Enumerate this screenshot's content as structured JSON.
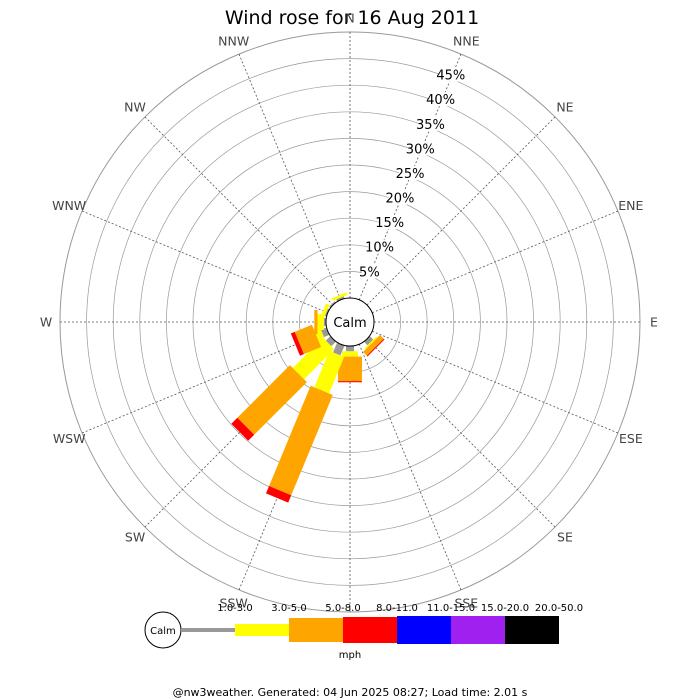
{
  "chart_data": {
    "type": "windrose",
    "title": "Wind rose for 16 Aug 2011",
    "directions": [
      "N",
      "NNE",
      "NE",
      "ENE",
      "E",
      "ESE",
      "SE",
      "SSE",
      "S",
      "SSW",
      "SW",
      "WSW",
      "W",
      "WNW",
      "NW",
      "NNW"
    ],
    "radial_ticks": [
      "5%",
      "10%",
      "15%",
      "20%",
      "25%",
      "30%",
      "35%",
      "40%",
      "45%"
    ],
    "radial_max": 50,
    "calm_label": "Calm",
    "unit": "mph",
    "speed_bins": [
      {
        "label": "1.0-3.0",
        "color": "#999999"
      },
      {
        "label": "3.0-5.0",
        "color": "#ffff00"
      },
      {
        "label": "5.0-8.0",
        "color": "#ffa500"
      },
      {
        "label": "8.0-11.0",
        "color": "#ff0000"
      },
      {
        "label": "11.0-15.0",
        "color": "#0000ff"
      },
      {
        "label": "15.0-20.0",
        "color": "#a020f0"
      },
      {
        "label": "20.0-50.0",
        "color": "#000000"
      }
    ],
    "series": [
      {
        "direction": "N",
        "values": [
          0,
          0,
          0,
          0,
          0,
          0,
          0
        ]
      },
      {
        "direction": "NNE",
        "values": [
          0,
          0,
          0,
          0,
          0,
          0,
          0
        ]
      },
      {
        "direction": "NE",
        "values": [
          0,
          0,
          0,
          0,
          0,
          0,
          0
        ]
      },
      {
        "direction": "ENE",
        "values": [
          0,
          0,
          0,
          0,
          0,
          0,
          0
        ]
      },
      {
        "direction": "E",
        "values": [
          0,
          0,
          0,
          0,
          0,
          0,
          0
        ]
      },
      {
        "direction": "ESE",
        "values": [
          0,
          0,
          0,
          0,
          0,
          0,
          0
        ]
      },
      {
        "direction": "SE",
        "values": [
          0.9,
          0.3,
          1.0,
          0.2,
          0,
          0,
          0
        ]
      },
      {
        "direction": "SSE",
        "values": [
          0,
          0,
          0,
          0,
          0,
          0,
          0
        ]
      },
      {
        "direction": "S",
        "values": [
          1.0,
          1.0,
          4.6,
          0.2,
          0,
          0,
          0
        ]
      },
      {
        "direction": "SSW",
        "values": [
          2.0,
          7.4,
          20.4,
          1.5,
          0,
          0,
          0
        ]
      },
      {
        "direction": "SW",
        "values": [
          1.2,
          8.0,
          14.0,
          1.6,
          0,
          0,
          0
        ]
      },
      {
        "direction": "WSW",
        "values": [
          1.1,
          1.2,
          3.5,
          0.8,
          0,
          0,
          0
        ]
      },
      {
        "direction": "W",
        "values": [
          0.4,
          1.2,
          0.6,
          0,
          0,
          0,
          0
        ]
      },
      {
        "direction": "WNW",
        "values": [
          0.3,
          0.7,
          0,
          0,
          0,
          0,
          0
        ]
      },
      {
        "direction": "NW",
        "values": [
          0.3,
          0,
          0,
          0,
          0,
          0,
          0
        ]
      },
      {
        "direction": "NNW",
        "values": [
          0.4,
          0.5,
          0,
          0,
          0,
          0,
          0
        ]
      }
    ],
    "footer": "@nw3weather. Generated: 04 Jun 2025 08:27; Load time: 2.01 s"
  }
}
